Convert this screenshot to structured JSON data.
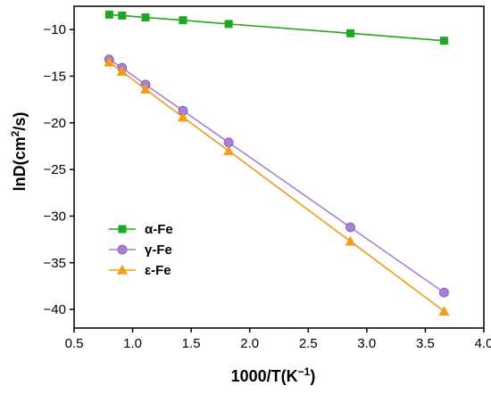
{
  "chart_data": {
    "type": "line",
    "xlabel_main": "1000/T(K",
    "xlabel_sup": "−1",
    "xlabel_end": ")",
    "ylabel_main": "lnD(cm",
    "ylabel_sup": "2",
    "ylabel_end": "/s)",
    "xlim": [
      0.5,
      4.0
    ],
    "ylim": [
      -42,
      -7.5
    ],
    "xticks": [
      0.5,
      1.0,
      1.5,
      2.0,
      2.5,
      3.0,
      3.5,
      4.0
    ],
    "xtick_labels": [
      "0.5",
      "1.0",
      "1.5",
      "2.0",
      "2.5",
      "3.0",
      "3.5",
      "4.0"
    ],
    "yticks": [
      -10,
      -15,
      -20,
      -25,
      -30,
      -35,
      -40
    ],
    "ytick_labels": [
      "−10",
      "−15",
      "−20",
      "−25",
      "−30",
      "−35",
      "−40"
    ],
    "grid": false,
    "legend_position": "lower-left",
    "x": [
      0.8,
      0.91,
      1.11,
      1.43,
      1.82,
      2.86,
      3.66
    ],
    "series": [
      {
        "name": "α-Fe",
        "marker": "square",
        "color": "#1fa81f",
        "values": [
          -8.4,
          -8.5,
          -8.7,
          -9.0,
          -9.4,
          -10.4,
          -11.2
        ]
      },
      {
        "name": "γ-Fe",
        "marker": "circle",
        "color": "#a97fd6",
        "values": [
          -13.2,
          -14.1,
          -15.9,
          -18.7,
          -22.1,
          -31.2,
          -38.2
        ]
      },
      {
        "name": "ε-Fe",
        "marker": "triangle",
        "color": "#f59b14",
        "values": [
          -13.5,
          -14.5,
          -16.4,
          -19.4,
          -23.0,
          -32.7,
          -40.2
        ]
      }
    ]
  }
}
